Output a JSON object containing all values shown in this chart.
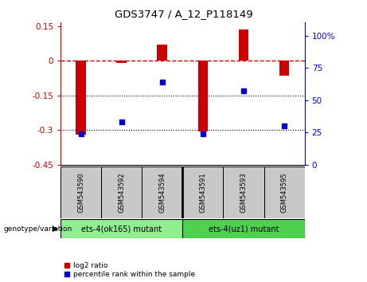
{
  "title": "GDS3747 / A_12_P118149",
  "samples": [
    "GSM543590",
    "GSM543592",
    "GSM543594",
    "GSM543591",
    "GSM543593",
    "GSM543595"
  ],
  "log2_ratio": [
    -0.32,
    -0.01,
    0.07,
    -0.305,
    0.135,
    -0.065
  ],
  "percentile_rank": [
    24,
    33,
    64,
    24,
    57,
    30
  ],
  "groups": [
    {
      "label": "ets-4(ok165) mutant",
      "samples_idx": [
        0,
        1,
        2
      ],
      "color": "#90ee90"
    },
    {
      "label": "ets-4(uz1) mutant",
      "samples_idx": [
        3,
        4,
        5
      ],
      "color": "#50d050"
    }
  ],
  "ylim_left": [
    -0.45,
    0.165
  ],
  "ylim_right": [
    0,
    110
  ],
  "yticks_left": [
    0.15,
    0.0,
    -0.15,
    -0.3,
    -0.45
  ],
  "yticks_right": [
    100,
    75,
    50,
    25,
    0
  ],
  "bar_color": "#cc0000",
  "dot_color": "#0000cc",
  "zero_line_color": "#cc0000",
  "grid_line_color": "#000000",
  "bg_color": "#ffffff",
  "plot_bg": "#ffffff",
  "bar_width": 0.25,
  "sample_box_color": "#c8c8c8",
  "group1_color": "#90ee90",
  "group2_color": "#50d050"
}
